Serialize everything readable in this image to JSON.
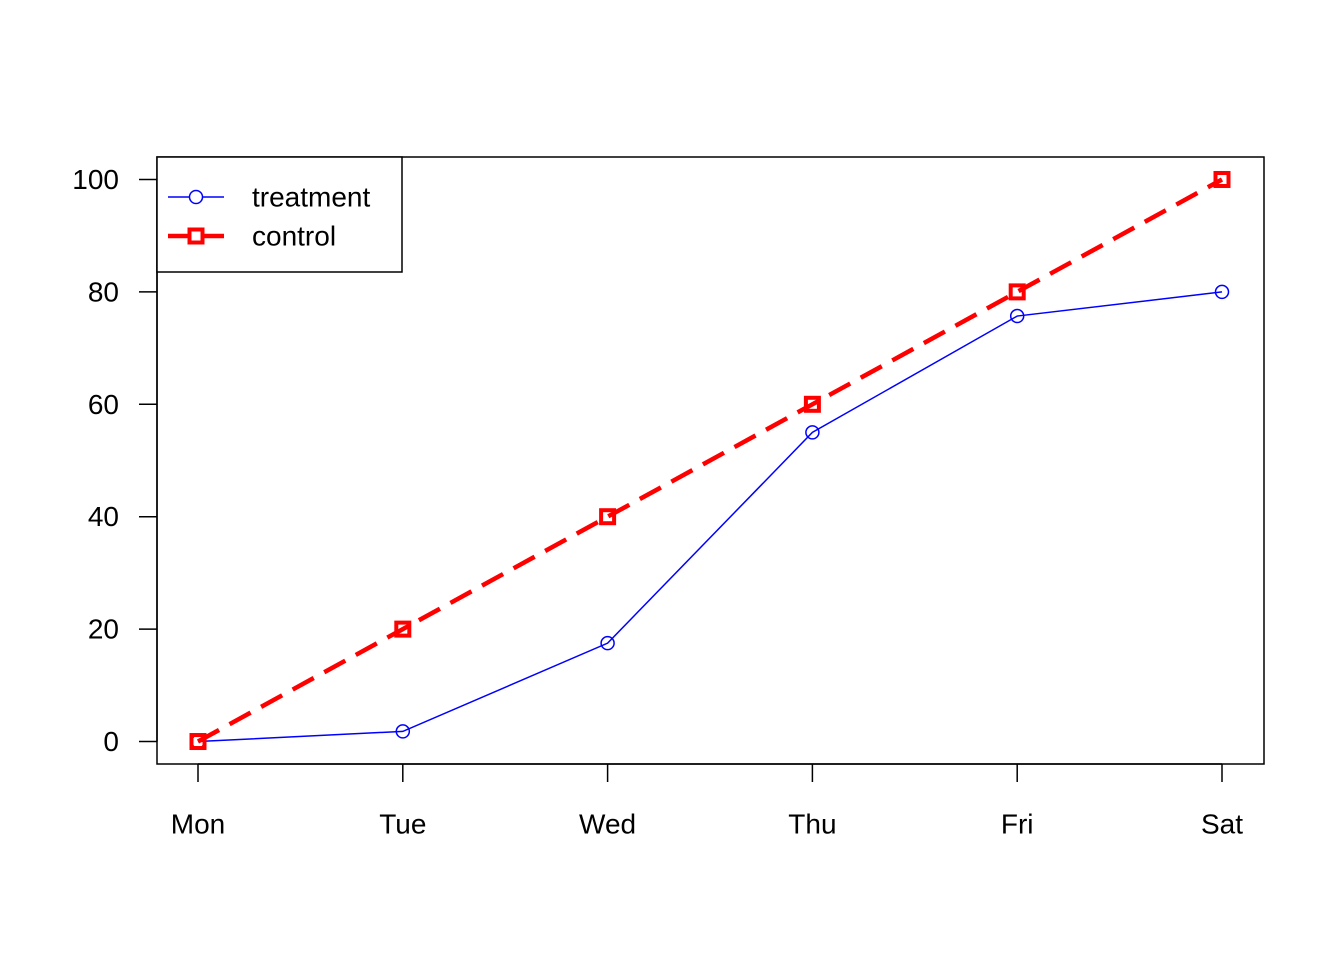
{
  "chart_data": {
    "type": "line",
    "title": "",
    "xlabel": "",
    "ylabel": "",
    "categories": [
      "Mon",
      "Tue",
      "Wed",
      "Thu",
      "Fri",
      "Sat"
    ],
    "ylim": [
      -4,
      104
    ],
    "yticks": [
      0,
      20,
      40,
      60,
      80,
      100
    ],
    "grid": false,
    "legend_position": "top-left",
    "series": [
      {
        "name": "treatment",
        "values": [
          0,
          1.8,
          17.5,
          55,
          75.7,
          80
        ],
        "color": "#0000ff",
        "marker": "circle",
        "line_style": "solid"
      },
      {
        "name": "control",
        "values": [
          0,
          20,
          40,
          60,
          80,
          100
        ],
        "color": "#ff0000",
        "marker": "square",
        "line_style": "dashed"
      }
    ]
  }
}
